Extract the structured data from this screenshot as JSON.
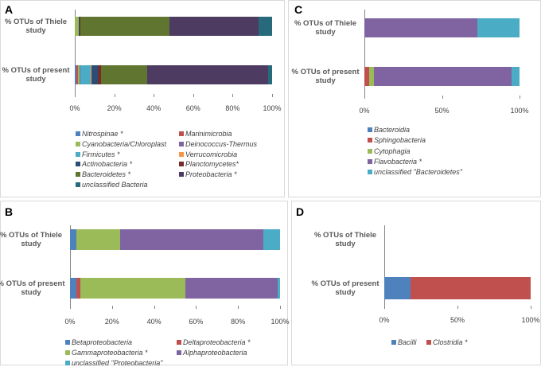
{
  "chart_data": [
    {
      "type": "bar",
      "orientation": "horizontal",
      "stacked": true,
      "label": "A",
      "categories": [
        "% OTUs of Thiele study",
        "% OTUs of present study"
      ],
      "xlim": [
        0,
        100
      ],
      "xticks": [
        {
          "value": 0,
          "label": "0%"
        },
        {
          "value": 20,
          "label": "20%"
        },
        {
          "value": 40,
          "label": "40%"
        },
        {
          "value": 60,
          "label": "60%"
        },
        {
          "value": 80,
          "label": "80%"
        },
        {
          "value": 100,
          "label": "100%"
        }
      ],
      "series": [
        {
          "name": "Nitrospinae *",
          "color": "#4f81bd",
          "values": [
            0,
            1
          ]
        },
        {
          "name": "Marinimicrobia",
          "color": "#c0504d",
          "values": [
            0,
            0.5
          ]
        },
        {
          "name": "Cyanobacteria/Chloroplast",
          "color": "#9bbb59",
          "values": [
            2,
            1
          ]
        },
        {
          "name": "Deinococcus-Thermus",
          "color": "#8064a2",
          "values": [
            0,
            0.5
          ]
        },
        {
          "name": "Firmicutes *",
          "color": "#4bacc6",
          "values": [
            0,
            5
          ]
        },
        {
          "name": "Verrucomicrobia",
          "color": "#f79646",
          "values": [
            0,
            0.5
          ]
        },
        {
          "name": "Actinobacteria *",
          "color": "#2c4d75",
          "values": [
            0.5,
            3
          ]
        },
        {
          "name": "Planctomycetes*",
          "color": "#772c2a",
          "values": [
            0.5,
            2
          ]
        },
        {
          "name": "Bacteroidetes *",
          "color": "#5f7530",
          "values": [
            45,
            23
          ]
        },
        {
          "name": "Proteobacteria *",
          "color": "#4d3b62",
          "values": [
            45,
            61.5
          ]
        },
        {
          "name": "unclassified Bacteria",
          "color": "#276a7c",
          "values": [
            7,
            2
          ]
        }
      ]
    },
    {
      "type": "bar",
      "orientation": "horizontal",
      "stacked": true,
      "label": "B",
      "categories": [
        "% OTUs of Thiele study",
        "% OTUs of present study"
      ],
      "xlim": [
        0,
        100
      ],
      "xticks": [
        {
          "value": 0,
          "label": "0%"
        },
        {
          "value": 20,
          "label": "20%"
        },
        {
          "value": 40,
          "label": "40%"
        },
        {
          "value": 60,
          "label": "60%"
        },
        {
          "value": 80,
          "label": "80%"
        },
        {
          "value": 100,
          "label": "100%"
        }
      ],
      "series": [
        {
          "name": "Betaproteobacteria",
          "color": "#4f81bd",
          "values": [
            3,
            3
          ]
        },
        {
          "name": "Deltaproteobacteria  *",
          "color": "#c0504d",
          "values": [
            0,
            2
          ]
        },
        {
          "name": "Gammaproteobacteria  *",
          "color": "#9bbb59",
          "values": [
            21,
            50
          ]
        },
        {
          "name": "Alphaproteobacteria",
          "color": "#8064a2",
          "values": [
            68,
            44
          ]
        },
        {
          "name": "unclassified \"Proteobacteria\"",
          "color": "#4bacc6",
          "values": [
            8,
            1
          ]
        }
      ]
    },
    {
      "type": "bar",
      "orientation": "horizontal",
      "stacked": true,
      "label": "C",
      "categories": [
        "% OTUs of Thiele study",
        "% OTUs of present study"
      ],
      "xlim": [
        0,
        100
      ],
      "xticks": [
        {
          "value": 0,
          "label": "0%"
        },
        {
          "value": 50,
          "label": "50%"
        },
        {
          "value": 100,
          "label": "100%"
        }
      ],
      "series": [
        {
          "name": "Bacteroidia",
          "color": "#4f81bd",
          "values": [
            0,
            0
          ]
        },
        {
          "name": "Sphingobacteria",
          "color": "#c0504d",
          "values": [
            0,
            3
          ]
        },
        {
          "name": "Cytophagia",
          "color": "#9bbb59",
          "values": [
            0,
            3
          ]
        },
        {
          "name": "Flavobacteria *",
          "color": "#8064a2",
          "values": [
            73,
            89
          ]
        },
        {
          "name": "unclassified \"Bacteroidetes\"",
          "color": "#4bacc6",
          "values": [
            27,
            5
          ]
        }
      ]
    },
    {
      "type": "bar",
      "orientation": "horizontal",
      "stacked": true,
      "label": "D",
      "categories": [
        "% OTUs of Thiele study",
        "% OTUs of present study"
      ],
      "xlim": [
        0,
        100
      ],
      "xticks": [
        {
          "value": 0,
          "label": "0%"
        },
        {
          "value": 50,
          "label": "50%"
        },
        {
          "value": 100,
          "label": "100%"
        }
      ],
      "series": [
        {
          "name": "Bacilli",
          "color": "#4f81bd",
          "values": [
            null,
            18
          ]
        },
        {
          "name": "Clostridia *",
          "color": "#c0504d",
          "values": [
            null,
            82
          ]
        }
      ]
    }
  ]
}
